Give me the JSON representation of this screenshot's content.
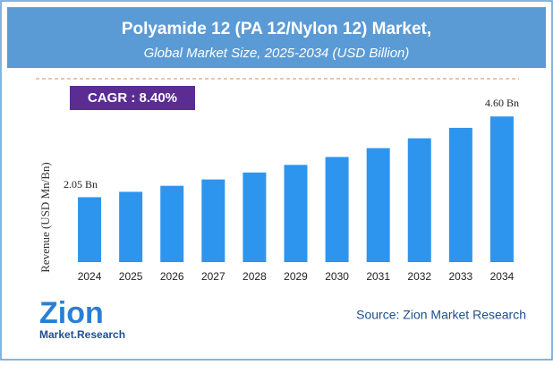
{
  "chart_data": {
    "type": "bar",
    "title": "Polyamide 12 (PA 12/Nylon 12) Market,",
    "subtitle": "Global Market Size, 2025-2034 (USD Billion)",
    "annotation": "CAGR : 8.40%",
    "y_label": "Revenue (USD Mn/Bn)",
    "categories": [
      "2024",
      "2025",
      "2026",
      "2027",
      "2028",
      "2029",
      "2030",
      "2031",
      "2032",
      "2033",
      "2034"
    ],
    "values": [
      2.05,
      2.22,
      2.41,
      2.61,
      2.83,
      3.07,
      3.32,
      3.6,
      3.91,
      4.24,
      4.6
    ],
    "value_labels": [
      "2.05 Bn",
      null,
      null,
      null,
      null,
      null,
      null,
      null,
      null,
      null,
      "4.60 Bn"
    ],
    "color": "#2e95ee",
    "ylim": [
      0,
      5
    ],
    "grid": false
  },
  "logo": {
    "name": "Zion",
    "tagline": "Market.Research"
  },
  "source": "Source: Zion Market Research"
}
